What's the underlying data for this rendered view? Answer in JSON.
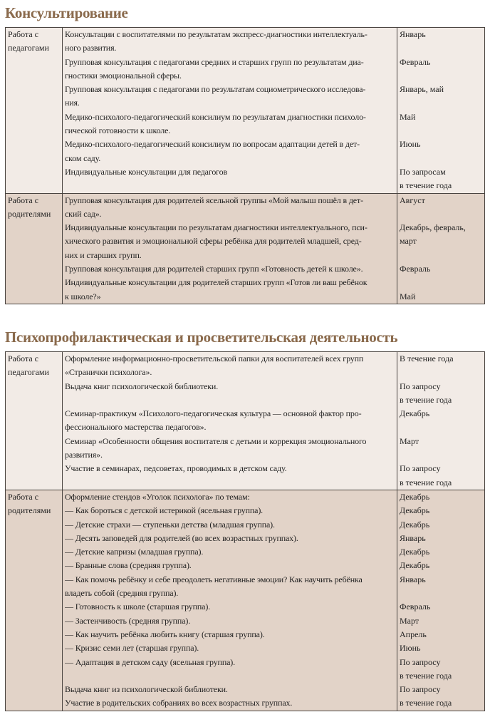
{
  "sections": [
    {
      "title": "Консультирование",
      "rows": [
        {
          "label": [
            "Работа с",
            "педагогами"
          ],
          "lines": [
            [
              "Консультации с воспитателями по результатам экспресс-диагностики интеллектуаль-",
              "Январь"
            ],
            [
              "ного развития.",
              ""
            ],
            [
              "Групповая консультация с педагогами средних и старших групп по результатам диа-",
              "Февраль"
            ],
            [
              "гностики эмоциональной сферы.",
              ""
            ],
            [
              "Групповая консультация с педагогами по результатам социометрического исследова-",
              "Январь, май"
            ],
            [
              "ния.",
              ""
            ],
            [
              "Медико-психолого-педагогический консилиум по результатам диагностики психоло-",
              "Май"
            ],
            [
              "гической готовности к школе.",
              ""
            ],
            [
              "Медико-психолого-педагогический консилиум по вопросам адаптации детей в дет-",
              "Июнь"
            ],
            [
              "ском саду.",
              ""
            ],
            [
              "Индивидуальные консультации для педагогов",
              "По запросам"
            ],
            [
              "",
              "в течение года"
            ]
          ]
        },
        {
          "label": [
            "Работа с",
            "родителями"
          ],
          "lines": [
            [
              "Групповая консультация для родителей ясельной группы «Мой малыш пошёл в дет-",
              "Август"
            ],
            [
              "ский сад».",
              ""
            ],
            [
              "Индивидуальные консультации по результатам диагностики интеллектуального, пси-",
              "Декабрь, февраль,"
            ],
            [
              "хического развития и эмоциональной сферы ребёнка для родителей младшей, сред-",
              "март"
            ],
            [
              "них и старших групп.",
              ""
            ],
            [
              "Групповая консультация для родителей старших групп «Готовность детей к школе».",
              "Февраль"
            ],
            [
              "Индивидуальные консультации для родителей старших групп «Готов ли ваш ребёнок",
              ""
            ],
            [
              "к школе?»",
              "Май"
            ]
          ]
        }
      ]
    },
    {
      "title": "Психопрофилактическая и просветительская деятельность",
      "rows": [
        {
          "label": [
            "Работа с",
            "педагогами"
          ],
          "lines": [
            [
              "Оформление информационно-просветительской папки для воспитателей всех групп",
              "В течение года"
            ],
            [
              "«Странички психолога».",
              ""
            ],
            [
              "Выдача книг психологической библиотеки.",
              "По запросу"
            ],
            [
              "",
              "в течение года"
            ],
            [
              "Семинар-практикум «Психолого-педагогическая культура — основной фактор про-",
              "Декабрь"
            ],
            [
              "фессионального мастерства педагогов».",
              ""
            ],
            [
              "Семинар «Особенности общения воспитателя с детьми и коррекция эмоционального",
              "Март"
            ],
            [
              "развития».",
              ""
            ],
            [
              "Участие в семинарах, педсоветах, проводимых в детском саду.",
              "По запросу"
            ],
            [
              "",
              "в течение года"
            ]
          ]
        },
        {
          "label": [
            "Работа с",
            "родителями"
          ],
          "lines": [
            [
              "Оформление стендов «Уголок психолога» по темам:",
              "Декабрь"
            ],
            [
              "— Как бороться с детской истерикой (ясельная группа).",
              "Декабрь"
            ],
            [
              "— Детские страхи — ступеньки детства (младшая группа).",
              "Декабрь"
            ],
            [
              "— Десять заповедей для родителей (во всех возрастных группах).",
              "Январь"
            ],
            [
              "— Детские капризы (младшая группа).",
              "Декабрь"
            ],
            [
              "— Бранные слова (средняя группа).",
              "Декабрь"
            ],
            [
              "— Как помочь ребёнку и себе преодолеть негативные эмоции? Как научить ребёнка",
              "Январь"
            ],
            [
              "владеть собой (средняя группа).",
              ""
            ],
            [
              "— Готовность к школе (старшая группа).",
              "Февраль"
            ],
            [
              "— Застенчивость (средняя группа).",
              "Март"
            ],
            [
              "— Как научить ребёнка любить книгу (старшая группа).",
              "Апрель"
            ],
            [
              "— Кризис семи лет (старшая группа).",
              "Июнь"
            ],
            [
              "— Адаптация в детском саду (ясельная группа).",
              "По запросу"
            ],
            [
              "",
              "в течение года"
            ],
            [
              "Выдача книг из психологической библиотеки.",
              "По запросу"
            ],
            [
              "Участие в родительских собраниях во всех возрастных группах.",
              "в течение года"
            ]
          ]
        }
      ]
    }
  ],
  "colors": {
    "heading": "#8a6a4c",
    "row_light": "#f2ebe6",
    "row_dark": "#e2d3c8",
    "border": "#4a4440"
  }
}
